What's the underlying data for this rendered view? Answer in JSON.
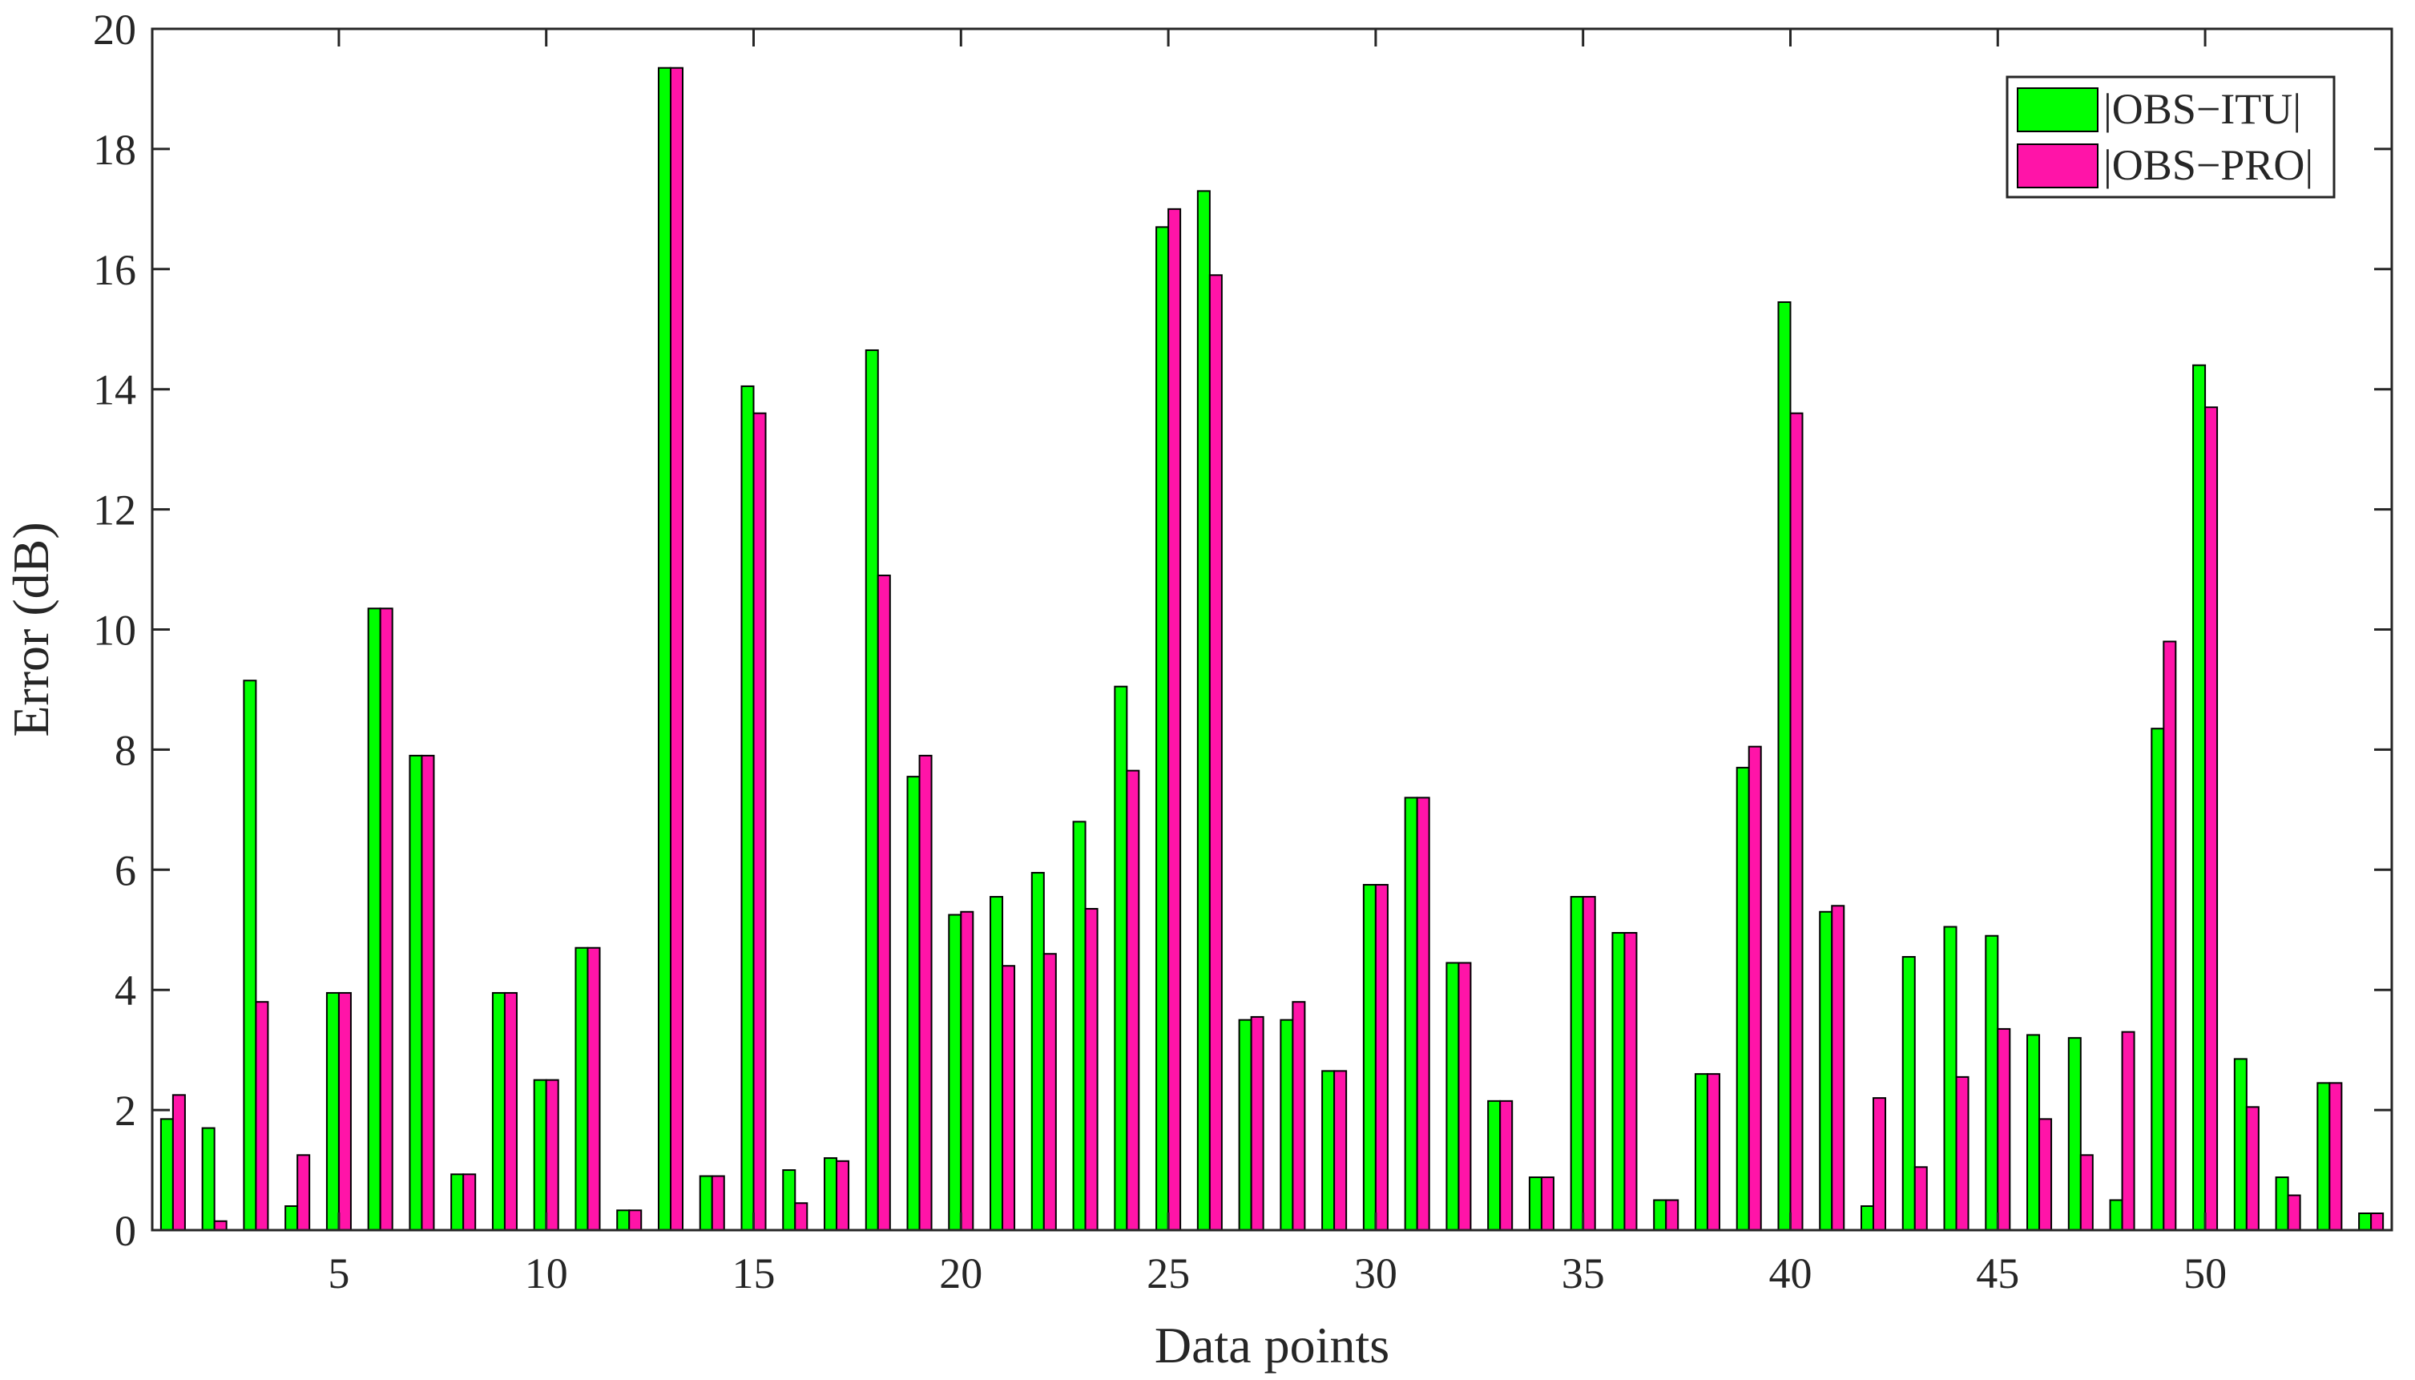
{
  "chart_data": {
    "type": "bar",
    "xlabel": "Data points",
    "ylabel": "Error (dB)",
    "xlim": [
      0.5,
      54.5
    ],
    "ylim": [
      0,
      20
    ],
    "x_ticks": [
      5,
      10,
      15,
      20,
      25,
      30,
      35,
      40,
      45,
      50
    ],
    "y_ticks": [
      0,
      2,
      4,
      6,
      8,
      10,
      12,
      14,
      16,
      18,
      20
    ],
    "grid": false,
    "legend_position": "top-right",
    "categories": [
      1,
      2,
      3,
      4,
      5,
      6,
      7,
      8,
      9,
      10,
      11,
      12,
      13,
      14,
      15,
      16,
      17,
      18,
      19,
      20,
      21,
      22,
      23,
      24,
      25,
      26,
      27,
      28,
      29,
      30,
      31,
      32,
      33,
      34,
      35,
      36,
      37,
      38,
      39,
      40,
      41,
      42,
      43,
      44,
      45,
      46,
      47,
      48,
      49,
      50,
      51,
      52,
      53,
      54
    ],
    "series": [
      {
        "name": "|OBS−ITU|",
        "color": "#00ff00",
        "values": [
          1.85,
          1.7,
          9.15,
          0.4,
          3.95,
          10.35,
          7.9,
          0.93,
          3.95,
          2.5,
          4.7,
          0.33,
          19.35,
          0.9,
          14.05,
          1.0,
          1.2,
          14.65,
          7.55,
          5.25,
          5.55,
          5.95,
          6.8,
          9.05,
          16.7,
          17.3,
          3.5,
          3.5,
          2.65,
          5.75,
          7.2,
          4.45,
          2.15,
          0.88,
          5.55,
          4.95,
          0.5,
          2.6,
          7.7,
          15.45,
          5.3,
          0.4,
          4.55,
          5.05,
          4.9,
          3.25,
          3.2,
          0.5,
          8.35,
          14.4,
          2.85,
          0.88,
          2.45,
          0.28
        ]
      },
      {
        "name": "|OBS−PRO|",
        "color": "#ff14a8",
        "values": [
          2.25,
          0.15,
          3.8,
          1.25,
          3.95,
          10.35,
          7.9,
          0.93,
          3.95,
          2.5,
          4.7,
          0.33,
          19.35,
          0.9,
          13.6,
          0.45,
          1.15,
          10.9,
          7.9,
          5.3,
          4.4,
          4.6,
          5.35,
          7.65,
          17.0,
          15.9,
          3.55,
          3.8,
          2.65,
          5.75,
          7.2,
          4.45,
          2.15,
          0.88,
          5.55,
          4.95,
          0.5,
          2.6,
          8.05,
          13.6,
          5.4,
          2.2,
          1.05,
          2.55,
          3.35,
          1.85,
          1.25,
          3.3,
          9.8,
          13.7,
          2.05,
          0.58,
          2.45,
          0.28
        ]
      }
    ]
  }
}
